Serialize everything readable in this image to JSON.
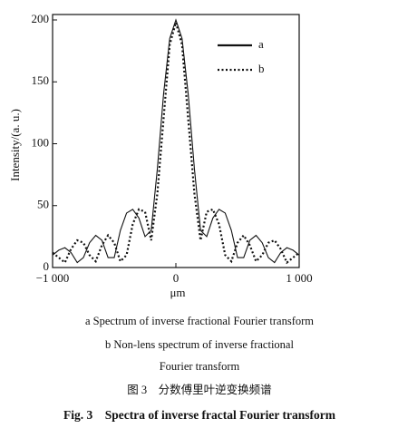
{
  "chart_data": {
    "type": "line",
    "ylabel": "Intensity/(a. u.)",
    "xlabel": "μm",
    "x": [
      -1000,
      -950,
      -900,
      -850,
      -800,
      -750,
      -700,
      -650,
      -600,
      -550,
      -500,
      -450,
      -400,
      -350,
      -300,
      -250,
      -200,
      -150,
      -100,
      -50,
      0,
      50,
      100,
      150,
      200,
      250,
      300,
      350,
      400,
      450,
      500,
      550,
      600,
      650,
      700,
      750,
      800,
      850,
      900,
      950,
      1000
    ],
    "series": [
      {
        "name": "a",
        "color": "#111111",
        "style": "solid",
        "values": [
          10,
          14,
          16,
          12,
          4,
          8,
          20,
          26,
          22,
          8,
          8,
          30,
          44,
          47,
          40,
          25,
          30,
          80,
          140,
          185,
          200,
          185,
          140,
          80,
          30,
          25,
          40,
          47,
          44,
          30,
          8,
          8,
          22,
          26,
          20,
          8,
          4,
          12,
          16,
          14,
          10
        ]
      },
      {
        "name": "b",
        "color": "#111111",
        "style": "dotted",
        "values": [
          12,
          8,
          4,
          15,
          22,
          20,
          10,
          5,
          18,
          26,
          20,
          5,
          10,
          35,
          47,
          45,
          22,
          60,
          120,
          180,
          198,
          180,
          120,
          60,
          22,
          45,
          47,
          35,
          10,
          5,
          20,
          26,
          18,
          5,
          10,
          20,
          22,
          15,
          4,
          8,
          12
        ]
      }
    ],
    "xlim": [
      -1000,
      1000
    ],
    "xticks": [
      {
        "value": -1000,
        "label": "−1 000"
      },
      0,
      {
        "value": 1000,
        "label": "1 000"
      }
    ],
    "ylim": [
      0,
      200
    ],
    "yticks": [
      0,
      50,
      100,
      150,
      200
    ],
    "grid": false,
    "legend": "upper right",
    "captions": [
      "a Spectrum of inverse fractional Fourier transform",
      "b Non-lens spectrum of inverse fractional",
      "Fourier transform",
      "图 3　分数傅里叶逆变换频谱"
    ],
    "figure_title": "Fig. 3　Spectra of inverse fractal Fourier transform"
  }
}
